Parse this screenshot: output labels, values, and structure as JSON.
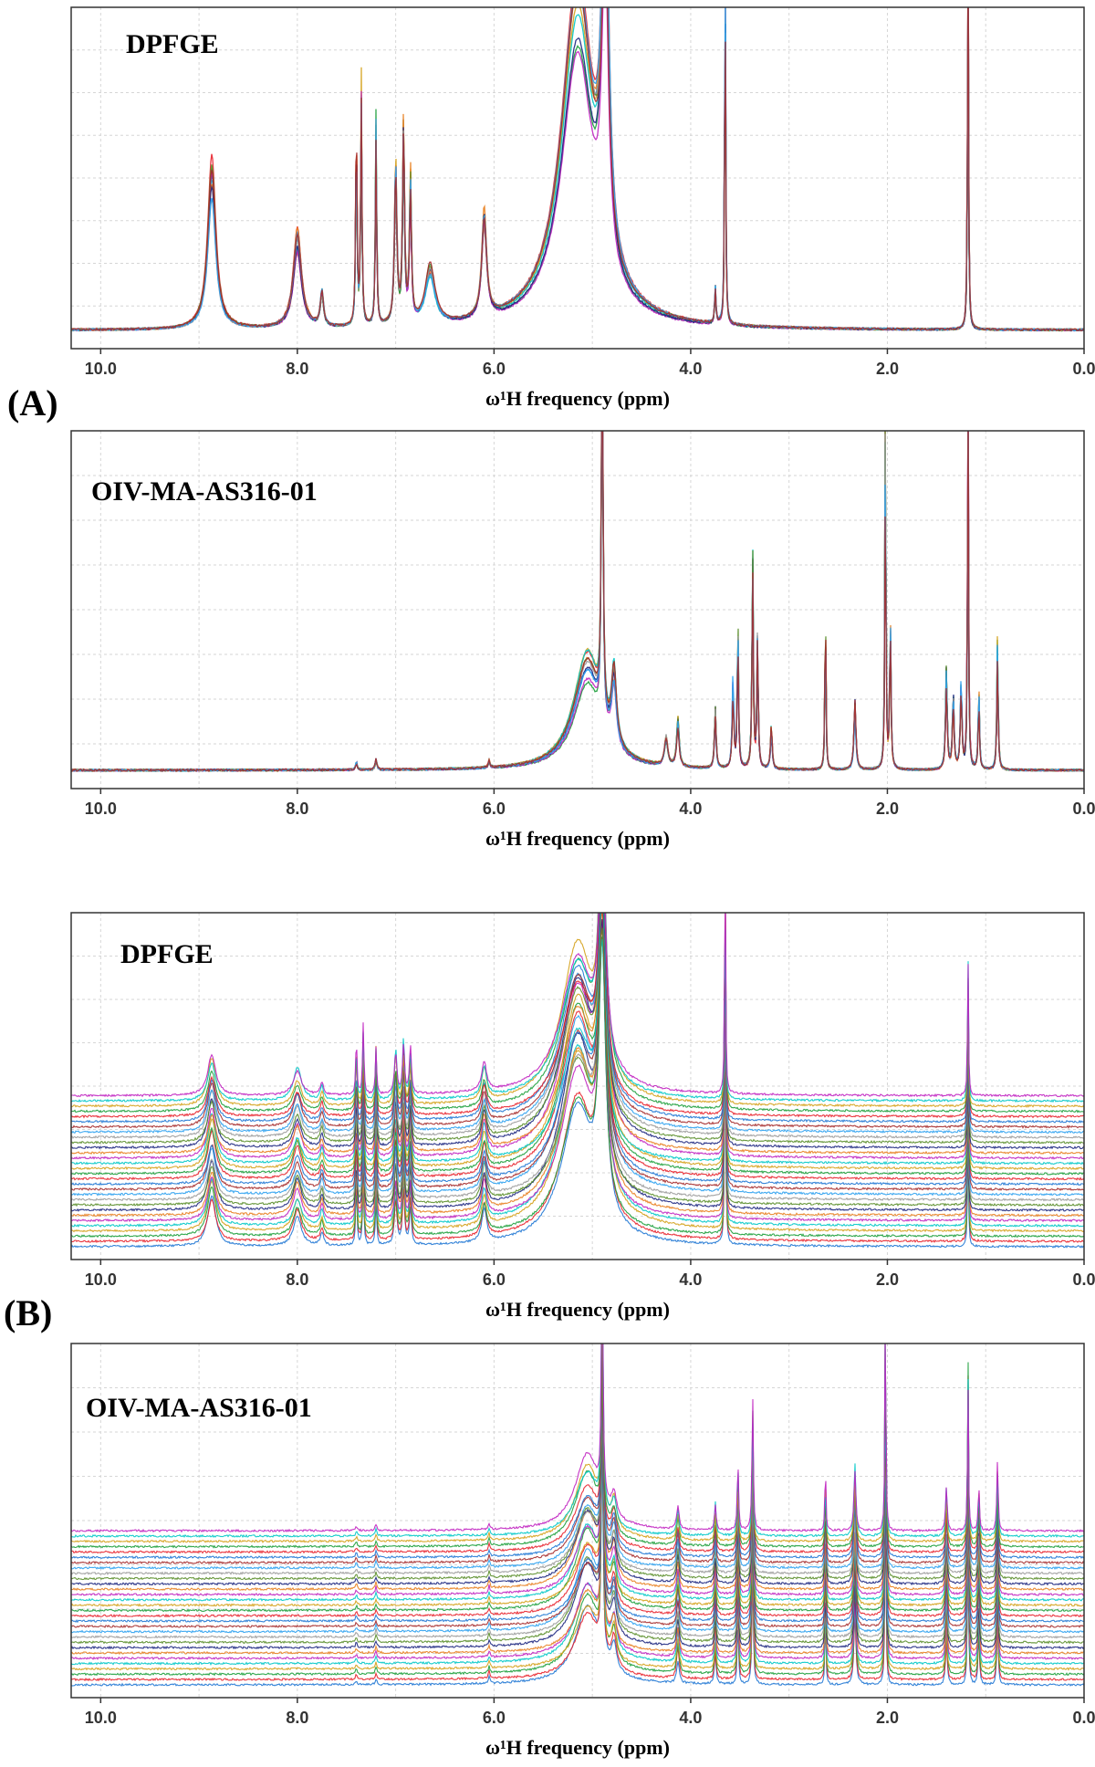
{
  "figure": {
    "section_labels": [
      "(A)",
      "(B)"
    ]
  },
  "chart_data": [
    {
      "type": "line",
      "panel": "A-top",
      "annotation": "DPFGE",
      "xlabel": "ω¹H frequency (ppm)",
      "xlim": [
        10.3,
        0.0
      ],
      "xticks": [
        "10.0",
        "8.0",
        "6.0",
        "4.0",
        "2.0",
        "0.0"
      ],
      "x_reversed": true,
      "stacked": false,
      "n_traces": 12,
      "grid": true,
      "peaks": [
        {
          "ppm": 8.87,
          "height": 0.48,
          "width": 0.05
        },
        {
          "ppm": 8.0,
          "height": 0.27,
          "width": 0.05
        },
        {
          "ppm": 7.75,
          "height": 0.1,
          "width": 0.02
        },
        {
          "ppm": 7.4,
          "height": 0.58,
          "width": 0.008
        },
        {
          "ppm": 7.35,
          "height": 0.7,
          "width": 0.008
        },
        {
          "ppm": 7.2,
          "height": 0.6,
          "width": 0.008
        },
        {
          "ppm": 7.0,
          "height": 0.45,
          "width": 0.015
        },
        {
          "ppm": 6.92,
          "height": 0.56,
          "width": 0.012
        },
        {
          "ppm": 6.85,
          "height": 0.42,
          "width": 0.012
        },
        {
          "ppm": 6.65,
          "height": 0.17,
          "width": 0.06
        },
        {
          "ppm": 6.1,
          "height": 0.3,
          "width": 0.03
        },
        {
          "ppm": 5.15,
          "height": 0.95,
          "width": 0.2
        },
        {
          "ppm": 4.87,
          "height": 1.1,
          "width": 0.04
        },
        {
          "ppm": 3.75,
          "height": 0.1,
          "width": 0.008
        },
        {
          "ppm": 3.65,
          "height": 1.2,
          "width": 0.006
        },
        {
          "ppm": 1.18,
          "height": 1.2,
          "width": 0.006
        }
      ]
    },
    {
      "type": "line",
      "panel": "A-bottom",
      "annotation": "OIV-MA-AS316-01",
      "xlabel": "ω¹H frequency (ppm)",
      "xlim": [
        10.3,
        0.0
      ],
      "xticks": [
        "10.0",
        "8.0",
        "6.0",
        "4.0",
        "2.0",
        "0.0"
      ],
      "x_reversed": true,
      "stacked": false,
      "n_traces": 12,
      "grid": true,
      "peaks": [
        {
          "ppm": 7.4,
          "height": 0.02,
          "width": 0.01
        },
        {
          "ppm": 7.2,
          "height": 0.03,
          "width": 0.01
        },
        {
          "ppm": 6.05,
          "height": 0.02,
          "width": 0.01
        },
        {
          "ppm": 5.05,
          "height": 0.3,
          "width": 0.17
        },
        {
          "ppm": 4.9,
          "height": 1.1,
          "width": 0.01
        },
        {
          "ppm": 4.78,
          "height": 0.2,
          "width": 0.03
        },
        {
          "ppm": 4.25,
          "height": 0.08,
          "width": 0.02
        },
        {
          "ppm": 4.13,
          "height": 0.13,
          "width": 0.015
        },
        {
          "ppm": 3.75,
          "height": 0.16,
          "width": 0.01
        },
        {
          "ppm": 3.57,
          "height": 0.24,
          "width": 0.01
        },
        {
          "ppm": 3.52,
          "height": 0.4,
          "width": 0.008
        },
        {
          "ppm": 3.37,
          "height": 0.58,
          "width": 0.008
        },
        {
          "ppm": 3.32,
          "height": 0.36,
          "width": 0.008
        },
        {
          "ppm": 3.18,
          "height": 0.12,
          "width": 0.01
        },
        {
          "ppm": 2.63,
          "height": 0.49,
          "width": 0.006
        },
        {
          "ppm": 2.33,
          "height": 0.18,
          "width": 0.012
        },
        {
          "ppm": 2.02,
          "height": 1.1,
          "width": 0.006
        },
        {
          "ppm": 1.97,
          "height": 0.4,
          "width": 0.008
        },
        {
          "ppm": 1.4,
          "height": 0.28,
          "width": 0.01
        },
        {
          "ppm": 1.33,
          "height": 0.2,
          "width": 0.01
        },
        {
          "ppm": 1.25,
          "height": 0.24,
          "width": 0.01
        },
        {
          "ppm": 1.18,
          "height": 1.1,
          "width": 0.006
        },
        {
          "ppm": 1.07,
          "height": 0.22,
          "width": 0.008
        },
        {
          "ppm": 0.88,
          "height": 0.35,
          "width": 0.008
        }
      ]
    },
    {
      "type": "line",
      "panel": "B-top",
      "annotation": "DPFGE",
      "xlabel": "ω¹H frequency (ppm)",
      "xlim": [
        10.3,
        0.0
      ],
      "xticks": [
        "10.0",
        "8.0",
        "6.0",
        "4.0",
        "2.0",
        "0.0"
      ],
      "x_reversed": true,
      "stacked": true,
      "n_traces": 30,
      "grid": true,
      "peaks": [
        {
          "ppm": 8.87,
          "height": 0.2,
          "width": 0.05
        },
        {
          "ppm": 8.0,
          "height": 0.13,
          "width": 0.05
        },
        {
          "ppm": 7.75,
          "height": 0.06,
          "width": 0.02
        },
        {
          "ppm": 7.4,
          "height": 0.26,
          "width": 0.008
        },
        {
          "ppm": 7.33,
          "height": 0.3,
          "width": 0.008
        },
        {
          "ppm": 7.2,
          "height": 0.24,
          "width": 0.008
        },
        {
          "ppm": 7.0,
          "height": 0.2,
          "width": 0.015
        },
        {
          "ppm": 6.92,
          "height": 0.24,
          "width": 0.012
        },
        {
          "ppm": 6.85,
          "height": 0.2,
          "width": 0.012
        },
        {
          "ppm": 6.1,
          "height": 0.14,
          "width": 0.03
        },
        {
          "ppm": 5.15,
          "height": 0.7,
          "width": 0.2
        },
        {
          "ppm": 4.9,
          "height": 1.1,
          "width": 0.04
        },
        {
          "ppm": 3.65,
          "height": 1.1,
          "width": 0.006
        },
        {
          "ppm": 1.18,
          "height": 0.6,
          "width": 0.006
        }
      ]
    },
    {
      "type": "line",
      "panel": "B-bottom",
      "annotation": "OIV-MA-AS316-01",
      "xlabel": "ω¹H frequency (ppm)",
      "xlim": [
        10.3,
        0.0
      ],
      "xticks": [
        "10.0",
        "8.0",
        "6.0",
        "4.0",
        "2.0",
        "0.0"
      ],
      "x_reversed": true,
      "stacked": true,
      "n_traces": 30,
      "grid": true,
      "peaks": [
        {
          "ppm": 7.4,
          "height": 0.02,
          "width": 0.01
        },
        {
          "ppm": 7.2,
          "height": 0.03,
          "width": 0.01
        },
        {
          "ppm": 6.05,
          "height": 0.03,
          "width": 0.01
        },
        {
          "ppm": 5.05,
          "height": 0.32,
          "width": 0.15
        },
        {
          "ppm": 4.9,
          "height": 1.1,
          "width": 0.01
        },
        {
          "ppm": 4.78,
          "height": 0.12,
          "width": 0.03
        },
        {
          "ppm": 4.13,
          "height": 0.12,
          "width": 0.015
        },
        {
          "ppm": 3.75,
          "height": 0.13,
          "width": 0.01
        },
        {
          "ppm": 3.52,
          "height": 0.3,
          "width": 0.008
        },
        {
          "ppm": 3.37,
          "height": 0.55,
          "width": 0.008
        },
        {
          "ppm": 2.63,
          "height": 0.3,
          "width": 0.006
        },
        {
          "ppm": 2.33,
          "height": 0.3,
          "width": 0.012
        },
        {
          "ppm": 2.02,
          "height": 1.1,
          "width": 0.006
        },
        {
          "ppm": 1.4,
          "height": 0.2,
          "width": 0.01
        },
        {
          "ppm": 1.18,
          "height": 0.75,
          "width": 0.006
        },
        {
          "ppm": 1.07,
          "height": 0.22,
          "width": 0.008
        },
        {
          "ppm": 0.88,
          "height": 0.28,
          "width": 0.008
        }
      ]
    }
  ],
  "trace_colors": [
    "#1f77d4",
    "#e8202a",
    "#1b9e3a",
    "#d4a017",
    "#00c8c8",
    "#c020c0",
    "#e87e1e",
    "#1a237e",
    "#5a8e2a",
    "#9a9a9a",
    "#2aa0f0",
    "#a52a2a"
  ]
}
